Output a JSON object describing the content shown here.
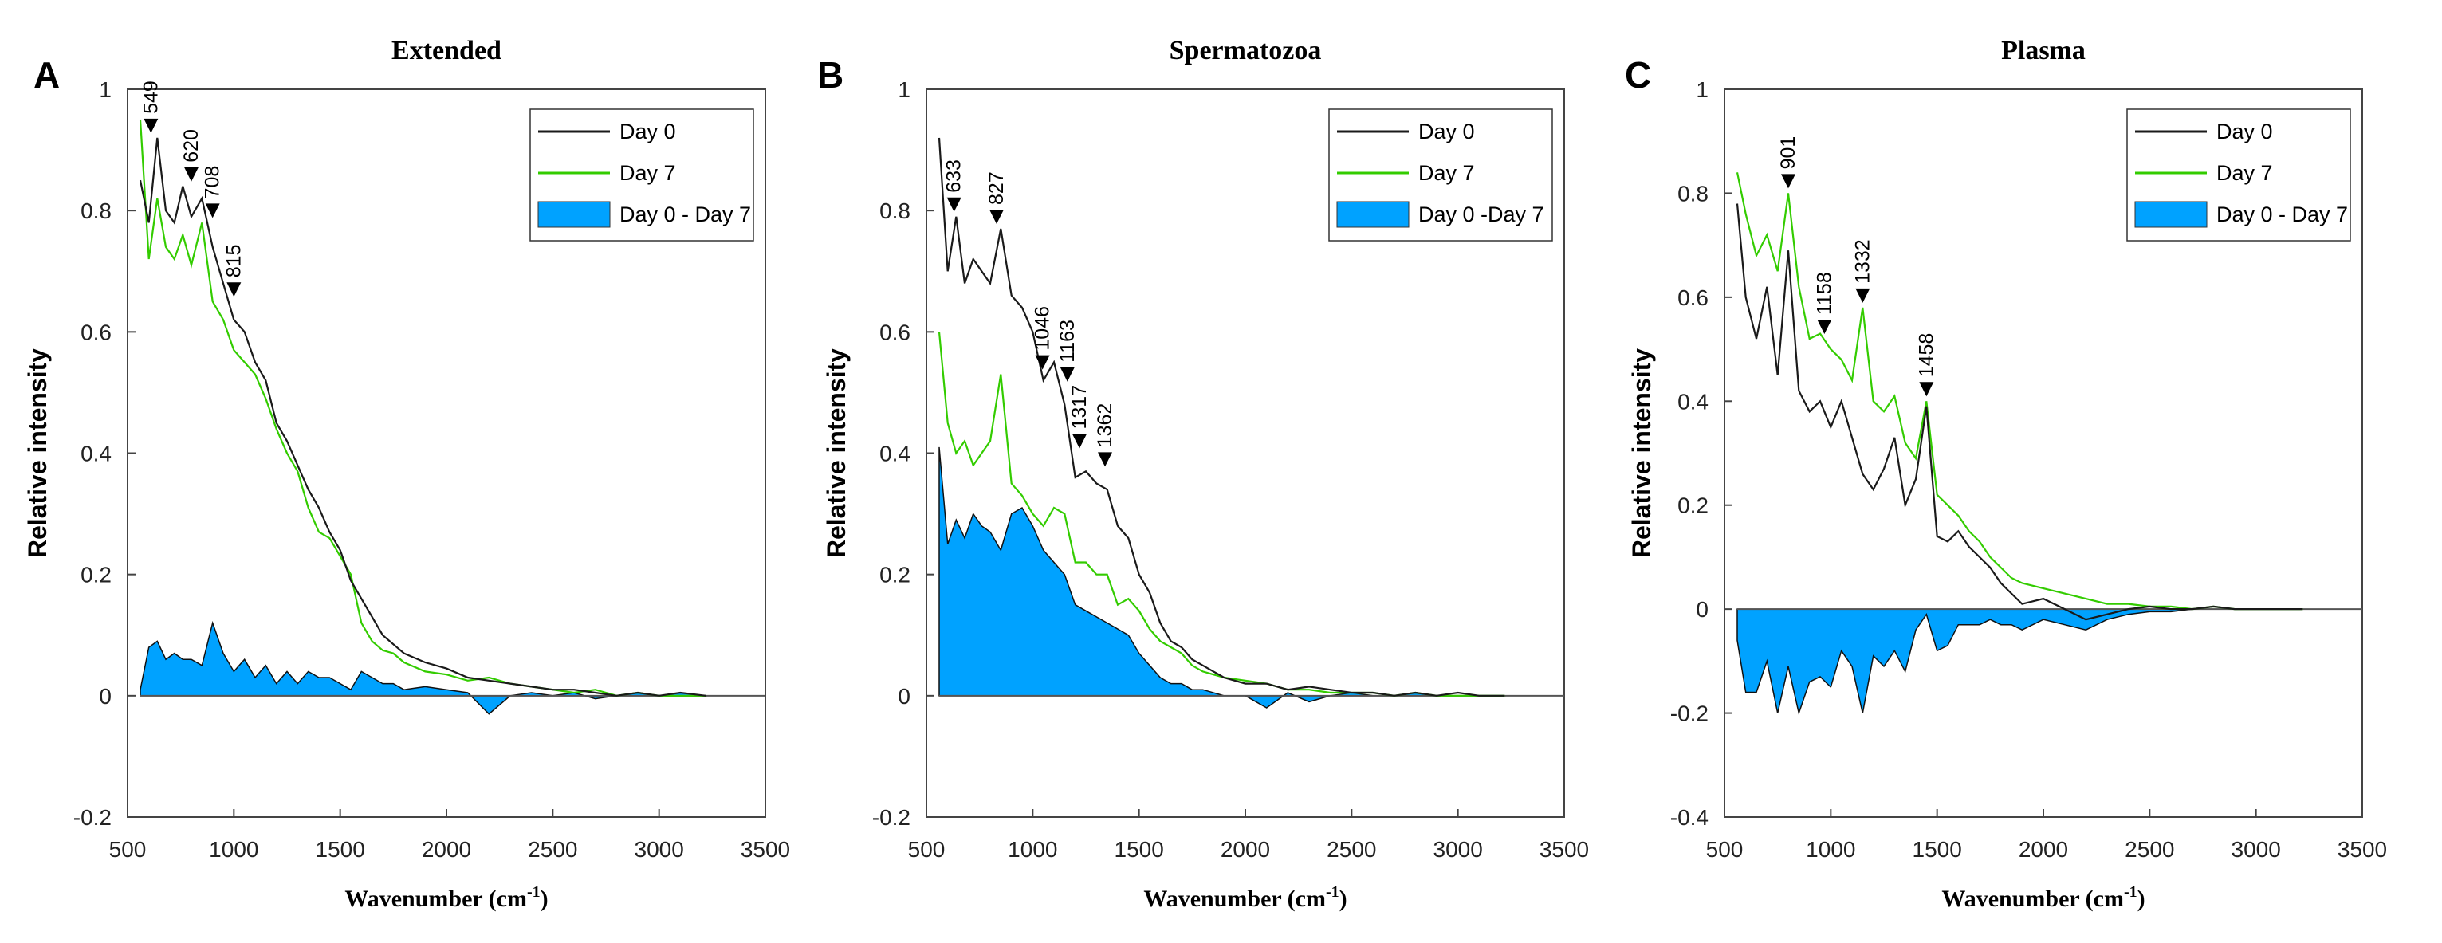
{
  "x_axis_label": "Wavenumber (cm",
  "x_axis_sup": "-1",
  "x_axis_close": ")",
  "y_axis_label": "Relative intensity",
  "colors": {
    "day0": "#1a1a1a",
    "day7": "#33cc00",
    "diff": "#00a2ff"
  },
  "chart_data": [
    {
      "panel": "A",
      "type": "line",
      "title": "Extended",
      "xlim": [
        500,
        3500
      ],
      "ylim": [
        -0.2,
        1
      ],
      "xticks": [
        500,
        1000,
        1500,
        2000,
        2500,
        3000,
        3500
      ],
      "yticks": [
        -0.2,
        0,
        0.2,
        0.4,
        0.6,
        0.8,
        1
      ],
      "ytick_labels": [
        "-0.2",
        "0",
        "0.2",
        "0.4",
        "0.6",
        "0.8",
        "1"
      ],
      "legend": [
        "Day 0",
        "Day 7",
        "Day 0 - Day 7"
      ],
      "x": [
        560,
        600,
        640,
        680,
        720,
        760,
        800,
        850,
        900,
        950,
        1000,
        1050,
        1100,
        1150,
        1200,
        1250,
        1300,
        1350,
        1400,
        1450,
        1500,
        1550,
        1600,
        1650,
        1700,
        1750,
        1800,
        1900,
        2000,
        2100,
        2200,
        2300,
        2400,
        2500,
        2600,
        2700,
        2800,
        2900,
        3000,
        3100,
        3220
      ],
      "series": [
        {
          "name": "Day 0",
          "values": [
            0.85,
            0.78,
            0.92,
            0.8,
            0.78,
            0.84,
            0.79,
            0.82,
            0.74,
            0.68,
            0.62,
            0.6,
            0.55,
            0.52,
            0.45,
            0.42,
            0.38,
            0.34,
            0.31,
            0.27,
            0.24,
            0.19,
            0.16,
            0.13,
            0.1,
            0.085,
            0.07,
            0.055,
            0.045,
            0.03,
            0.025,
            0.02,
            0.015,
            0.01,
            0.01,
            0.005,
            0.0,
            0.005,
            0.0,
            0.005,
            0.0
          ]
        },
        {
          "name": "Day 7",
          "values": [
            0.95,
            0.72,
            0.82,
            0.74,
            0.72,
            0.76,
            0.71,
            0.78,
            0.65,
            0.62,
            0.57,
            0.55,
            0.53,
            0.49,
            0.44,
            0.4,
            0.37,
            0.31,
            0.27,
            0.26,
            0.23,
            0.2,
            0.12,
            0.09,
            0.075,
            0.07,
            0.055,
            0.04,
            0.035,
            0.025,
            0.03,
            0.02,
            0.015,
            0.01,
            0.005,
            0.01,
            0.0,
            0.005,
            0.0,
            0.0,
            0.0
          ]
        },
        {
          "name": "Day 0 - Day 7",
          "values": [
            0.01,
            0.08,
            0.09,
            0.06,
            0.07,
            0.06,
            0.06,
            0.05,
            0.12,
            0.07,
            0.04,
            0.06,
            0.03,
            0.05,
            0.02,
            0.04,
            0.02,
            0.04,
            0.03,
            0.03,
            0.02,
            0.01,
            0.04,
            0.03,
            0.02,
            0.02,
            0.01,
            0.015,
            0.01,
            0.005,
            -0.03,
            0.0,
            0.005,
            0.0,
            0.005,
            -0.005,
            0.0,
            0.005,
            0.0,
            0.005,
            0.0
          ]
        }
      ],
      "annotations": [
        {
          "label": "549",
          "x": 610,
          "y": 0.92
        },
        {
          "label": "620",
          "x": 800,
          "y": 0.84
        },
        {
          "label": "708",
          "x": 900,
          "y": 0.78
        },
        {
          "label": "815",
          "x": 1000,
          "y": 0.65
        }
      ]
    },
    {
      "panel": "B",
      "type": "line",
      "title": "Spermatozoa",
      "xlim": [
        500,
        3500
      ],
      "ylim": [
        -0.2,
        1
      ],
      "xticks": [
        500,
        1000,
        1500,
        2000,
        2500,
        3000,
        3500
      ],
      "yticks": [
        -0.2,
        0,
        0.2,
        0.4,
        0.6,
        0.8,
        1
      ],
      "ytick_labels": [
        "-0.2",
        "0",
        "0.2",
        "0.4",
        "0.6",
        "0.8",
        "1"
      ],
      "legend": [
        "Day 0",
        "Day 7",
        "Day 0 -Day 7"
      ],
      "x": [
        560,
        600,
        640,
        680,
        720,
        760,
        800,
        850,
        900,
        950,
        1000,
        1050,
        1100,
        1150,
        1200,
        1250,
        1300,
        1350,
        1400,
        1450,
        1500,
        1550,
        1600,
        1650,
        1700,
        1750,
        1800,
        1900,
        2000,
        2100,
        2200,
        2300,
        2400,
        2500,
        2600,
        2700,
        2800,
        2900,
        3000,
        3100,
        3220
      ],
      "series": [
        {
          "name": "Day 0",
          "values": [
            0.92,
            0.7,
            0.79,
            0.68,
            0.72,
            0.7,
            0.68,
            0.77,
            0.66,
            0.64,
            0.6,
            0.52,
            0.55,
            0.48,
            0.36,
            0.37,
            0.35,
            0.34,
            0.28,
            0.26,
            0.2,
            0.17,
            0.12,
            0.09,
            0.08,
            0.06,
            0.05,
            0.03,
            0.02,
            0.02,
            0.01,
            0.015,
            0.01,
            0.005,
            0.005,
            0.0,
            0.005,
            0.0,
            0.005,
            0.0,
            0.0
          ]
        },
        {
          "name": "Day 7",
          "values": [
            0.6,
            0.45,
            0.4,
            0.42,
            0.38,
            0.4,
            0.42,
            0.53,
            0.35,
            0.33,
            0.3,
            0.28,
            0.31,
            0.3,
            0.22,
            0.22,
            0.2,
            0.2,
            0.15,
            0.16,
            0.14,
            0.11,
            0.09,
            0.08,
            0.07,
            0.05,
            0.04,
            0.03,
            0.025,
            0.02,
            0.01,
            0.01,
            0.005,
            0.005,
            0.005,
            0.0,
            0.005,
            0.0,
            0.0,
            0.0,
            0.0
          ]
        },
        {
          "name": "Day 0 -Day 7",
          "values": [
            0.41,
            0.25,
            0.29,
            0.26,
            0.3,
            0.28,
            0.27,
            0.24,
            0.3,
            0.31,
            0.28,
            0.24,
            0.22,
            0.2,
            0.15,
            0.14,
            0.13,
            0.12,
            0.11,
            0.1,
            0.07,
            0.05,
            0.03,
            0.02,
            0.02,
            0.01,
            0.01,
            0.0,
            0.0,
            -0.02,
            0.005,
            -0.01,
            0.0,
            0.005,
            0.0,
            0.0,
            0.005,
            0.0,
            0.0,
            0.0,
            0.0
          ]
        }
      ],
      "annotations": [
        {
          "label": "633",
          "x": 630,
          "y": 0.79
        },
        {
          "label": "827",
          "x": 830,
          "y": 0.77
        },
        {
          "label": "1046",
          "x": 1046,
          "y": 0.53
        },
        {
          "label": "1163",
          "x": 1163,
          "y": 0.51
        },
        {
          "label": "1317",
          "x": 1220,
          "y": 0.4
        },
        {
          "label": "1362",
          "x": 1340,
          "y": 0.37
        }
      ]
    },
    {
      "panel": "C",
      "type": "line",
      "title": "Plasma",
      "xlim": [
        500,
        3500
      ],
      "ylim": [
        -0.4,
        1
      ],
      "xticks": [
        500,
        1000,
        1500,
        2000,
        2500,
        3000,
        3500
      ],
      "yticks": [
        -0.4,
        -0.2,
        0,
        0.2,
        0.4,
        0.6,
        0.8,
        1
      ],
      "ytick_labels": [
        "-0.4",
        "-0.2",
        "0",
        "0.2",
        "0.4",
        "0.6",
        "0.8",
        "1"
      ],
      "legend": [
        "Day 0",
        "Day 7",
        "Day 0 - Day 7"
      ],
      "x": [
        560,
        600,
        650,
        700,
        750,
        800,
        850,
        900,
        950,
        1000,
        1050,
        1100,
        1150,
        1200,
        1250,
        1300,
        1350,
        1400,
        1450,
        1500,
        1550,
        1600,
        1650,
        1700,
        1750,
        1800,
        1850,
        1900,
        2000,
        2100,
        2200,
        2300,
        2400,
        2500,
        2600,
        2700,
        2800,
        2900,
        3000,
        3100,
        3220
      ],
      "series": [
        {
          "name": "Day 0",
          "values": [
            0.78,
            0.6,
            0.52,
            0.62,
            0.45,
            0.69,
            0.42,
            0.38,
            0.4,
            0.35,
            0.4,
            0.33,
            0.26,
            0.23,
            0.27,
            0.33,
            0.2,
            0.25,
            0.39,
            0.14,
            0.13,
            0.15,
            0.12,
            0.1,
            0.08,
            0.05,
            0.03,
            0.01,
            0.02,
            0.0,
            -0.02,
            -0.01,
            0.0,
            0.005,
            0.0,
            0.0,
            0.005,
            0.0,
            0.0,
            0.0,
            0.0
          ]
        },
        {
          "name": "Day 7",
          "values": [
            0.84,
            0.76,
            0.68,
            0.72,
            0.65,
            0.8,
            0.62,
            0.52,
            0.53,
            0.5,
            0.48,
            0.44,
            0.58,
            0.4,
            0.38,
            0.41,
            0.32,
            0.29,
            0.4,
            0.22,
            0.2,
            0.18,
            0.15,
            0.13,
            0.1,
            0.08,
            0.06,
            0.05,
            0.04,
            0.03,
            0.02,
            0.01,
            0.01,
            0.005,
            0.005,
            0.0,
            0.005,
            0.0,
            0.0,
            0.0,
            0.0
          ]
        },
        {
          "name": "Day 0 - Day 7",
          "values": [
            -0.06,
            -0.16,
            -0.16,
            -0.1,
            -0.2,
            -0.11,
            -0.2,
            -0.14,
            -0.13,
            -0.15,
            -0.08,
            -0.11,
            -0.2,
            -0.09,
            -0.11,
            -0.08,
            -0.12,
            -0.04,
            -0.01,
            -0.08,
            -0.07,
            -0.03,
            -0.03,
            -0.03,
            -0.02,
            -0.03,
            -0.03,
            -0.04,
            -0.02,
            -0.03,
            -0.04,
            -0.02,
            -0.01,
            -0.005,
            -0.005,
            0.0,
            0.0,
            0.0,
            0.0,
            0.0,
            0.0
          ]
        }
      ],
      "annotations": [
        {
          "label": "901",
          "x": 800,
          "y": 0.8
        },
        {
          "label": "1158",
          "x": 970,
          "y": 0.52
        },
        {
          "label": "1332",
          "x": 1150,
          "y": 0.58
        },
        {
          "label": "1458",
          "x": 1450,
          "y": 0.4
        }
      ]
    }
  ]
}
